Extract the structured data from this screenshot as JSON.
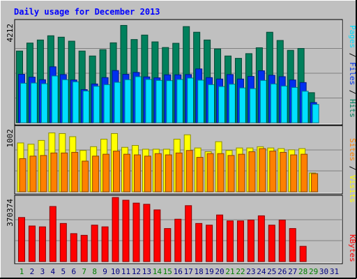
{
  "chart_data": {
    "type": "bar",
    "title": "Daily usage for December 2013",
    "days": [
      "1",
      "2",
      "3",
      "4",
      "5",
      "6",
      "7",
      "8",
      "9",
      "10",
      "11",
      "12",
      "13",
      "14",
      "15",
      "16",
      "17",
      "18",
      "19",
      "20",
      "21",
      "22",
      "23",
      "24",
      "25",
      "26",
      "27",
      "28",
      "29",
      "30",
      "31"
    ],
    "weekend_days": [
      "1",
      "7",
      "8",
      "14",
      "15",
      "21",
      "22",
      "28",
      "29"
    ],
    "panels": [
      {
        "id": "hits-files-pages",
        "max_label": "4212",
        "ymax": 4212,
        "series": [
          {
            "name": "Hits",
            "color": "#00805c",
            "values": [
              3050,
              3390,
              3520,
              3700,
              3640,
              3470,
              3050,
              2840,
              3110,
              3400,
              4140,
              3540,
              3730,
              3440,
              3200,
              3380,
              4090,
              3850,
              3520,
              3140,
              2840,
              2740,
              2940,
              3190,
              3850,
              3500,
              3080,
              3160,
              1280,
              0,
              0
            ]
          },
          {
            "name": "Files",
            "color": "#0030f0",
            "values": [
              2060,
              1940,
              1830,
              2380,
              2050,
              1820,
              1410,
              1650,
              1920,
              2220,
              2060,
              2140,
              1950,
              1910,
              2040,
              2040,
              2050,
              2290,
              1920,
              1860,
              2050,
              1860,
              1970,
              2210,
              2020,
              1960,
              1820,
              1710,
              860,
              0,
              0
            ]
          },
          {
            "name": "Pages",
            "color": "#00e0ff",
            "values": [
              1680,
              1690,
              1660,
              1990,
              1830,
              1740,
              1350,
              1550,
              1620,
              1720,
              1830,
              1960,
              1840,
              1800,
              1790,
              1840,
              1900,
              1810,
              1620,
              1540,
              1640,
              1480,
              1450,
              1800,
              1650,
              1560,
              1500,
              1340,
              780,
              0,
              0
            ]
          }
        ],
        "axis_label": [
          "Hits",
          "Files",
          "Pages"
        ]
      },
      {
        "id": "visits-sites",
        "max_label": "1002",
        "ymax": 1002,
        "series": [
          {
            "name": "Visits",
            "color": "#ffff00",
            "values": [
              780,
              760,
              820,
              940,
              930,
              880,
              660,
              720,
              840,
              930,
              710,
              740,
              680,
              680,
              680,
              840,
              910,
              700,
              640,
              800,
              660,
              700,
              700,
              720,
              700,
              690,
              670,
              690,
              300,
              0,
              0
            ]
          },
          {
            "name": "Sites",
            "color": "#ff8000",
            "values": [
              530,
              570,
              580,
              620,
              620,
              630,
              490,
              570,
              600,
              650,
              600,
              590,
              570,
              610,
              590,
              620,
              660,
              550,
              610,
              610,
              580,
              600,
              640,
              690,
              650,
              630,
              590,
              600,
              290,
              0,
              0
            ]
          }
        ],
        "axis_label": [
          "Sites",
          "Visits"
        ]
      },
      {
        "id": "kbytes",
        "max_label": "370374",
        "ymax": 370374,
        "series": [
          {
            "name": "KBytes",
            "color": "#ff0000",
            "values": [
              260000,
              210000,
              205000,
              325000,
              225000,
              165000,
              155000,
              215000,
              205000,
              378000,
              362000,
              345000,
              338000,
              305000,
              195000,
              250000,
              330000,
              225000,
              215000,
              275000,
              240000,
              240000,
              245000,
              270000,
              215000,
              245000,
              195000,
              90000,
              0,
              0,
              0
            ]
          }
        ],
        "axis_label": [
          "KBytes"
        ]
      }
    ]
  },
  "colors": {
    "background": "#c0c0c0",
    "title": "#0000ff",
    "day_label": "#000080",
    "weekend_label": "#008000",
    "axis_text": "#000000"
  }
}
